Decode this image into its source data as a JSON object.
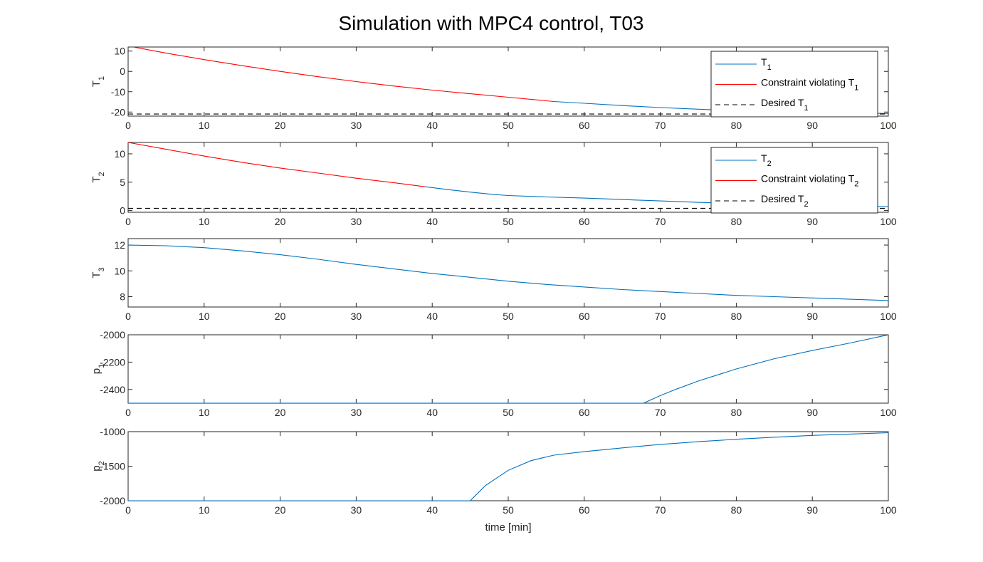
{
  "figure": {
    "title": "Simulation with MPC4 control, T03"
  },
  "chart_data": [
    {
      "type": "line",
      "ylabel_main": "T",
      "ylabel_sub": "1",
      "xlabel": "",
      "xlim": [
        0,
        100
      ],
      "ylim": [
        -22,
        12
      ],
      "xticks": [
        0,
        10,
        20,
        30,
        40,
        50,
        60,
        70,
        80,
        90,
        100
      ],
      "yticks": [
        -20,
        -10,
        0,
        10
      ],
      "legend_position": "top-right",
      "series": [
        {
          "name_main": "T",
          "name_sub": "1",
          "color": "#0072BD",
          "dash": "solid",
          "points": [
            [
              56,
              -14.8
            ],
            [
              60,
              -15.7
            ],
            [
              65,
              -16.8
            ],
            [
              70,
              -17.8
            ],
            [
              75,
              -18.6
            ],
            [
              80,
              -19.3
            ],
            [
              85,
              -19.8
            ],
            [
              90,
              -20.2
            ],
            [
              95,
              -20.5
            ],
            [
              100,
              -20.7
            ]
          ]
        },
        {
          "name_main": "Constraint violating T",
          "name_sub": "1",
          "color": "#FF0000",
          "dash": "solid",
          "points": [
            [
              0,
              12.5
            ],
            [
              5,
              9
            ],
            [
              10,
              5.8
            ],
            [
              15,
              2.8
            ],
            [
              20,
              0
            ],
            [
              25,
              -2.6
            ],
            [
              30,
              -5
            ],
            [
              35,
              -7.2
            ],
            [
              40,
              -9.2
            ],
            [
              45,
              -11
            ],
            [
              50,
              -12.7
            ],
            [
              56,
              -14.8
            ]
          ]
        },
        {
          "name_main": "Desired T",
          "name_sub": "1",
          "color": "#000000",
          "dash": "dashed",
          "points": [
            [
              0,
              -21
            ],
            [
              100,
              -21
            ]
          ]
        }
      ]
    },
    {
      "type": "line",
      "ylabel_main": "T",
      "ylabel_sub": "2",
      "xlabel": "",
      "xlim": [
        0,
        100
      ],
      "ylim": [
        -0.3,
        12
      ],
      "xticks": [
        0,
        10,
        20,
        30,
        40,
        50,
        60,
        70,
        80,
        90,
        100
      ],
      "yticks": [
        0,
        5,
        10
      ],
      "legend_position": "top-right",
      "series": [
        {
          "name_main": "T",
          "name_sub": "2",
          "color": "#0072BD",
          "dash": "solid",
          "points": [
            [
              39,
              4.2
            ],
            [
              42,
              3.7
            ],
            [
              45,
              3.25
            ],
            [
              48,
              2.85
            ],
            [
              50,
              2.65
            ],
            [
              55,
              2.4
            ],
            [
              60,
              2.2
            ],
            [
              65,
              1.95
            ],
            [
              70,
              1.7
            ],
            [
              75,
              1.45
            ],
            [
              80,
              1.25
            ],
            [
              85,
              1.05
            ],
            [
              90,
              0.9
            ],
            [
              95,
              0.8
            ],
            [
              100,
              0.7
            ]
          ]
        },
        {
          "name_main": "Constraint violating T",
          "name_sub": "2",
          "color": "#FF0000",
          "dash": "solid",
          "points": [
            [
              0,
              12
            ],
            [
              5,
              10.8
            ],
            [
              10,
              9.6
            ],
            [
              15,
              8.5
            ],
            [
              20,
              7.5
            ],
            [
              25,
              6.6
            ],
            [
              30,
              5.7
            ],
            [
              35,
              4.9
            ],
            [
              39,
              4.2
            ]
          ]
        },
        {
          "name_main": "Desired T",
          "name_sub": "2",
          "color": "#000000",
          "dash": "dashed",
          "points": [
            [
              0,
              0.4
            ],
            [
              100,
              0.4
            ]
          ]
        }
      ]
    },
    {
      "type": "line",
      "ylabel_main": "T",
      "ylabel_sub": "3",
      "xlabel": "",
      "xlim": [
        0,
        100
      ],
      "ylim": [
        7.2,
        12.5
      ],
      "xticks": [
        0,
        10,
        20,
        30,
        40,
        50,
        60,
        70,
        80,
        90,
        100
      ],
      "yticks": [
        8,
        10,
        12
      ],
      "series": [
        {
          "name_main": "",
          "name_sub": "",
          "color": "#0072BD",
          "dash": "solid",
          "points": [
            [
              0,
              12
            ],
            [
              5,
              11.95
            ],
            [
              10,
              11.8
            ],
            [
              15,
              11.55
            ],
            [
              20,
              11.25
            ],
            [
              25,
              10.9
            ],
            [
              30,
              10.5
            ],
            [
              35,
              10.15
            ],
            [
              40,
              9.8
            ],
            [
              45,
              9.5
            ],
            [
              50,
              9.2
            ],
            [
              55,
              8.95
            ],
            [
              60,
              8.75
            ],
            [
              65,
              8.55
            ],
            [
              70,
              8.4
            ],
            [
              75,
              8.25
            ],
            [
              80,
              8.1
            ],
            [
              85,
              8
            ],
            [
              90,
              7.9
            ],
            [
              95,
              7.8
            ],
            [
              100,
              7.7
            ]
          ]
        }
      ]
    },
    {
      "type": "line",
      "ylabel_main": "p",
      "ylabel_sub": "1",
      "xlabel": "",
      "xlim": [
        0,
        100
      ],
      "ylim": [
        -2500,
        -2000
      ],
      "xticks": [
        0,
        10,
        20,
        30,
        40,
        50,
        60,
        70,
        80,
        90,
        100
      ],
      "yticks": [
        -2400,
        -2200,
        -2000
      ],
      "series": [
        {
          "name_main": "",
          "name_sub": "",
          "color": "#0072BD",
          "dash": "solid",
          "points": [
            [
              0,
              -2500
            ],
            [
              67.8,
              -2500
            ],
            [
              70,
              -2445
            ],
            [
              72,
              -2400
            ],
            [
              75,
              -2338
            ],
            [
              80,
              -2250
            ],
            [
              85,
              -2175
            ],
            [
              90,
              -2115
            ],
            [
              95,
              -2060
            ],
            [
              100,
              -2000
            ]
          ]
        }
      ]
    },
    {
      "type": "line",
      "ylabel_main": "p",
      "ylabel_sub": "2",
      "xlabel": "time [min]",
      "xlim": [
        0,
        100
      ],
      "ylim": [
        -2000,
        -1000
      ],
      "xticks": [
        0,
        10,
        20,
        30,
        40,
        50,
        60,
        70,
        80,
        90,
        100
      ],
      "yticks": [
        -2000,
        -1500,
        -1000
      ],
      "series": [
        {
          "name_main": "",
          "name_sub": "",
          "color": "#0072BD",
          "dash": "solid",
          "points": [
            [
              0,
              -2000
            ],
            [
              45,
              -2000
            ],
            [
              47,
              -1780
            ],
            [
              50,
              -1560
            ],
            [
              53,
              -1420
            ],
            [
              56,
              -1340
            ],
            [
              60,
              -1290
            ],
            [
              65,
              -1235
            ],
            [
              70,
              -1185
            ],
            [
              75,
              -1145
            ],
            [
              80,
              -1110
            ],
            [
              85,
              -1080
            ],
            [
              90,
              -1055
            ],
            [
              95,
              -1035
            ],
            [
              100,
              -1015
            ]
          ]
        }
      ]
    }
  ]
}
